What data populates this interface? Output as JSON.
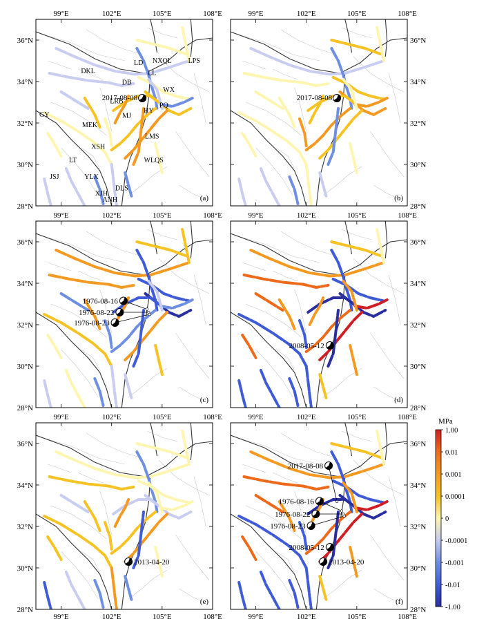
{
  "axes": {
    "x_ticks": [
      "99°E",
      "102°E",
      "105°E",
      "108°E"
    ],
    "y_ticks": [
      "36°N",
      "34°N",
      "32°N",
      "30°N",
      "28°N"
    ]
  },
  "colorbar": {
    "unit": "MPa",
    "labels": [
      "1.00",
      "0.01",
      "0.001",
      "0.0001",
      "0",
      "-0.0001",
      "-0.001",
      "-0.01",
      "-1.00"
    ],
    "colors": [
      "#cf1f25",
      "#ee6a1b",
      "#f49a22",
      "#f6c325",
      "#fef6b0",
      "#c9cdef",
      "#6e8fe2",
      "#3f5bd6",
      "#2a2fa0"
    ]
  },
  "fault_abbreviations": [
    "LD",
    "NXQL",
    "LPS",
    "DKL",
    "LL",
    "DB",
    "WX",
    "LRB",
    "PQ",
    "HY",
    "MJ",
    "GY",
    "MEK",
    "LMS",
    "XSH",
    "WLQS",
    "LT",
    "JSJ",
    "YLX",
    "DLS",
    "XJH",
    "ANH"
  ],
  "panels": [
    {
      "label": "(a)",
      "events": [
        {
          "date": "2017-08-08"
        }
      ]
    },
    {
      "label": "(b)",
      "events": [
        {
          "date": "2017-08-08"
        }
      ]
    },
    {
      "label": "(c)",
      "events": [
        {
          "date": "1976-08-16"
        },
        {
          "date": "1976-08-22"
        },
        {
          "date": "1976-08-23"
        }
      ]
    },
    {
      "label": "(d)",
      "events": [
        {
          "date": "2008-05-12"
        }
      ]
    },
    {
      "label": "(e)",
      "events": [
        {
          "date": "2013-04-20"
        }
      ]
    },
    {
      "label": "(f)",
      "events": [
        {
          "date": "2017-08-08"
        },
        {
          "date": "1976-08-16"
        },
        {
          "date": "1976-08-22"
        },
        {
          "date": "1976-08-23"
        },
        {
          "date": "2008-05-12"
        },
        {
          "date": "2013-04-20"
        }
      ]
    }
  ]
}
